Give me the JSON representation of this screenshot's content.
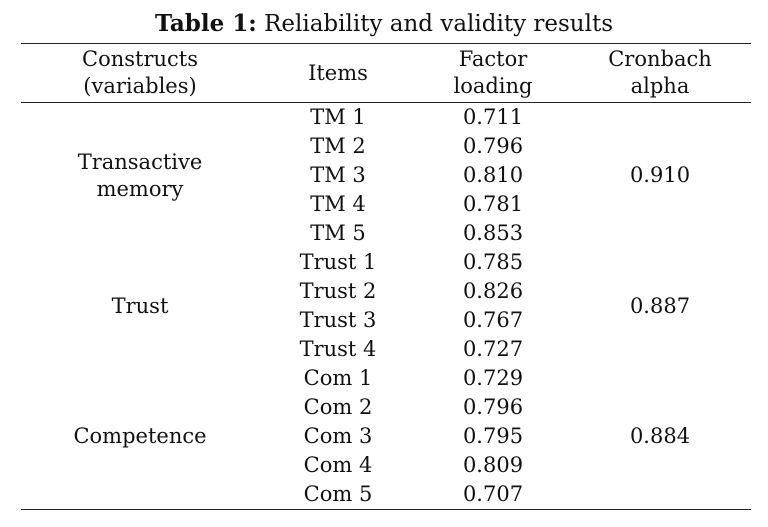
{
  "caption": {
    "label": "Table 1:",
    "text": " Reliability and validity results"
  },
  "header": {
    "constructs_line1": "Constructs",
    "constructs_line2": "(variables)",
    "items": "Items",
    "factor_line1": "Factor",
    "factor_line2": "loading",
    "alpha_line1": "Cronbach",
    "alpha_line2": "alpha"
  },
  "groups": [
    {
      "construct_line1": "Transactive",
      "construct_line2": "memory",
      "alpha": "0.910",
      "rows": [
        {
          "item": "TM 1",
          "loading": "0.711"
        },
        {
          "item": "TM 2",
          "loading": "0.796"
        },
        {
          "item": "TM 3",
          "loading": "0.810"
        },
        {
          "item": "TM 4",
          "loading": "0.781"
        },
        {
          "item": "TM 5",
          "loading": "0.853"
        }
      ]
    },
    {
      "construct_line1": "Trust",
      "alpha": "0.887",
      "rows": [
        {
          "item": "Trust 1",
          "loading": "0.785"
        },
        {
          "item": "Trust 2",
          "loading": "0.826"
        },
        {
          "item": "Trust 3",
          "loading": "0.767"
        },
        {
          "item": "Trust 4",
          "loading": "0.727"
        }
      ]
    },
    {
      "construct_line1": "Competence",
      "alpha": "0.884",
      "rows": [
        {
          "item": "Com 1",
          "loading": "0.729"
        },
        {
          "item": "Com 2",
          "loading": "0.796"
        },
        {
          "item": "Com 3",
          "loading": "0.795"
        },
        {
          "item": "Com 4",
          "loading": "0.809"
        },
        {
          "item": "Com 5",
          "loading": "0.707"
        }
      ]
    }
  ]
}
